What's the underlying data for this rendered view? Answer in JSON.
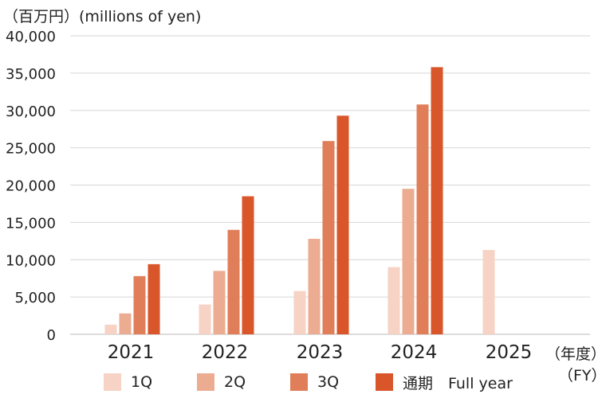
{
  "chart_data": {
    "type": "bar",
    "ylabel": "（百万円）(millions of yen)",
    "xunit_ja": "（年度）",
    "xunit_en": "（FY）",
    "categories": [
      "2021",
      "2022",
      "2023",
      "2024",
      "2025"
    ],
    "ylim": [
      0,
      40000
    ],
    "yticks": [
      "0",
      "5,000",
      "10,000",
      "15,000",
      "20,000",
      "25,000",
      "30,000",
      "35,000",
      "40,000"
    ],
    "grid": true,
    "legend_position": "bottom",
    "series": [
      {
        "name": "1Q",
        "color": "#f6d3c5",
        "values": [
          1300,
          4000,
          5800,
          9000,
          11300
        ]
      },
      {
        "name": "2Q",
        "color": "#ecac91",
        "values": [
          2800,
          8500,
          12800,
          19500,
          null
        ]
      },
      {
        "name": "3Q",
        "color": "#e17e5a",
        "values": [
          7800,
          14000,
          25900,
          30800,
          null
        ]
      },
      {
        "name": "通期　Full year",
        "color": "#d9562b",
        "values": [
          9400,
          18500,
          29300,
          35800,
          null
        ]
      }
    ]
  }
}
